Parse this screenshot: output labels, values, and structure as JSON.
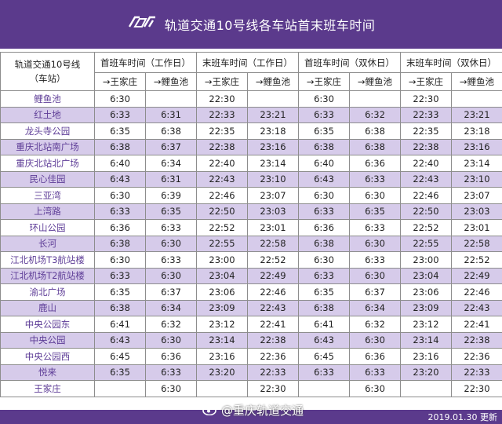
{
  "header": {
    "title": "轨道交通10号线各车站首末班车时间",
    "accent": "#5b3a8c"
  },
  "table": {
    "corner_line1": "轨道交通10号线",
    "corner_line2": "（车站）",
    "groups": [
      "首班车时间（工作日）",
      "末班车时间（工作日）",
      "首班车时间（双休日）",
      "末班车时间（双休日）"
    ],
    "directions": [
      "→王家庄",
      "→鲤鱼池",
      "→王家庄",
      "→鲤鱼池",
      "→王家庄",
      "→鲤鱼池",
      "→王家庄",
      "→鲤鱼池"
    ],
    "rows": [
      {
        "station": "鲤鱼池",
        "times": [
          "6:30",
          "",
          "22:30",
          "",
          "6:30",
          "",
          "22:30",
          ""
        ]
      },
      {
        "station": "红土地",
        "times": [
          "6:33",
          "6:31",
          "22:33",
          "23:21",
          "6:33",
          "6:32",
          "22:33",
          "23:21"
        ]
      },
      {
        "station": "龙头寺公园",
        "times": [
          "6:35",
          "6:38",
          "22:35",
          "23:18",
          "6:35",
          "6:38",
          "22:35",
          "23:18"
        ]
      },
      {
        "station": "重庆北站南广场",
        "times": [
          "6:38",
          "6:37",
          "22:38",
          "23:16",
          "6:38",
          "6:38",
          "22:38",
          "23:16"
        ]
      },
      {
        "station": "重庆北站北广场",
        "times": [
          "6:40",
          "6:34",
          "22:40",
          "23:14",
          "6:40",
          "6:36",
          "22:40",
          "23:14"
        ]
      },
      {
        "station": "民心佳园",
        "times": [
          "6:43",
          "6:31",
          "22:43",
          "23:10",
          "6:43",
          "6:33",
          "22:43",
          "23:10"
        ]
      },
      {
        "station": "三亚湾",
        "times": [
          "6:30",
          "6:39",
          "22:46",
          "23:07",
          "6:30",
          "6:30",
          "22:46",
          "23:07"
        ]
      },
      {
        "station": "上湾路",
        "times": [
          "6:33",
          "6:35",
          "22:50",
          "23:03",
          "6:33",
          "6:35",
          "22:50",
          "23:03"
        ]
      },
      {
        "station": "环山公园",
        "times": [
          "6:36",
          "6:33",
          "22:52",
          "23:01",
          "6:36",
          "6:33",
          "22:52",
          "23:01"
        ]
      },
      {
        "station": "长河",
        "times": [
          "6:38",
          "6:30",
          "22:55",
          "22:58",
          "6:38",
          "6:30",
          "22:55",
          "22:58"
        ]
      },
      {
        "station": "江北机场T3航站楼",
        "times": [
          "6:30",
          "6:33",
          "23:00",
          "22:52",
          "6:30",
          "6:33",
          "23:00",
          "22:52"
        ]
      },
      {
        "station": "江北机场T2航站楼",
        "times": [
          "6:33",
          "6:30",
          "23:04",
          "22:49",
          "6:33",
          "6:30",
          "23:04",
          "22:49"
        ]
      },
      {
        "station": "渝北广场",
        "times": [
          "6:35",
          "6:37",
          "23:06",
          "22:46",
          "6:35",
          "6:37",
          "23:06",
          "22:46"
        ]
      },
      {
        "station": "鹿山",
        "times": [
          "6:38",
          "6:34",
          "23:09",
          "22:43",
          "6:38",
          "6:34",
          "23:09",
          "22:43"
        ]
      },
      {
        "station": "中央公园东",
        "times": [
          "6:41",
          "6:32",
          "23:12",
          "22:41",
          "6:41",
          "6:32",
          "23:12",
          "22:41"
        ]
      },
      {
        "station": "中央公园",
        "times": [
          "6:43",
          "6:30",
          "23:14",
          "22:38",
          "6:43",
          "6:30",
          "23:14",
          "22:38"
        ]
      },
      {
        "station": "中央公园西",
        "times": [
          "6:45",
          "6:36",
          "23:16",
          "22:36",
          "6:45",
          "6:36",
          "23:16",
          "22:36"
        ]
      },
      {
        "station": "悦来",
        "times": [
          "6:35",
          "6:33",
          "23:20",
          "22:33",
          "6:33",
          "6:33",
          "23:20",
          "22:33"
        ]
      },
      {
        "station": "王家庄",
        "times": [
          "",
          "6:30",
          "",
          "22:30",
          "",
          "6:30",
          "",
          "22:30"
        ]
      }
    ]
  },
  "footer": {
    "watermark": "@重庆轨道交通",
    "watermark_icon": "weibo-icon",
    "date": "2019.01.30 更新"
  }
}
